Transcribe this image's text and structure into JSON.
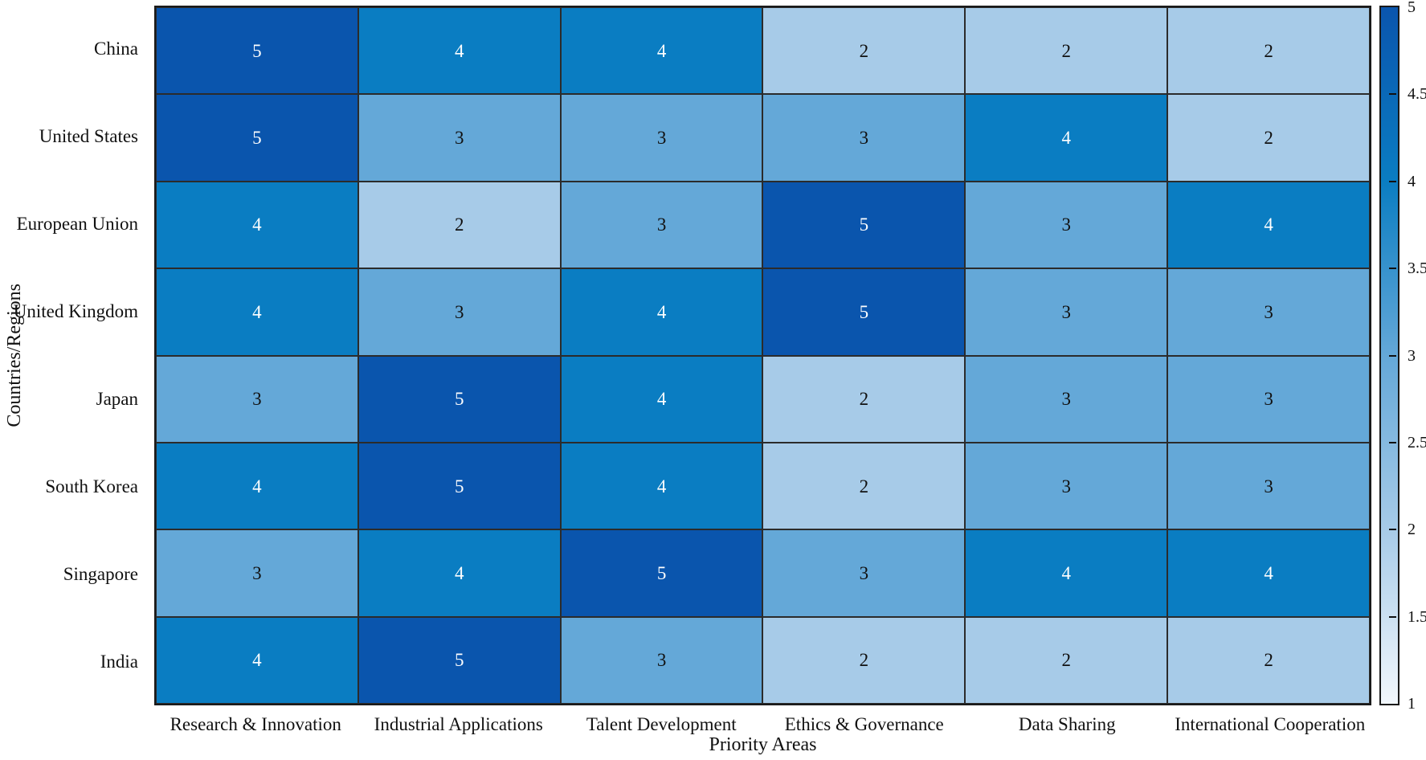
{
  "chart_data": {
    "type": "heatmap",
    "title": "",
    "xlabel": "Priority Areas",
    "ylabel": "Countries/Regions",
    "rows": [
      "China",
      "United States",
      "European Union",
      "United Kingdom",
      "Japan",
      "South Korea",
      "Singapore",
      "India"
    ],
    "columns": [
      "Research & Innovation",
      "Industrial Applications",
      "Talent Development",
      "Ethics & Governance",
      "Data Sharing",
      "International Cooperation"
    ],
    "values": [
      [
        5,
        4,
        4,
        2,
        2,
        2
      ],
      [
        5,
        3,
        3,
        3,
        4,
        2
      ],
      [
        4,
        2,
        3,
        5,
        3,
        4
      ],
      [
        4,
        3,
        4,
        5,
        3,
        3
      ],
      [
        3,
        5,
        4,
        2,
        3,
        3
      ],
      [
        4,
        5,
        4,
        2,
        3,
        3
      ],
      [
        3,
        4,
        5,
        3,
        4,
        4
      ],
      [
        4,
        5,
        3,
        2,
        2,
        2
      ]
    ],
    "value_colors": {
      "1": "#f2f7fc",
      "2": "#a7cbe8",
      "3": "#64a8d8",
      "4": "#0a7dc2",
      "5": "#0a55ad"
    },
    "cell_text_light": "#ffffff",
    "cell_text_dark": "#111111",
    "grid_line_color": "#2b2b2b",
    "legend_position": "right",
    "grid": "on",
    "colorbar": {
      "min": 1,
      "max": 5,
      "tick_labels": [
        "5",
        "4.5",
        "4",
        "3.5",
        "3",
        "2.5",
        "2",
        "1.5",
        "1"
      ],
      "gradient_top_to_bottom": [
        "#0a55ad",
        "#0a7dc2",
        "#64a8d8",
        "#a7cbe8",
        "#f2f7fc"
      ]
    }
  }
}
